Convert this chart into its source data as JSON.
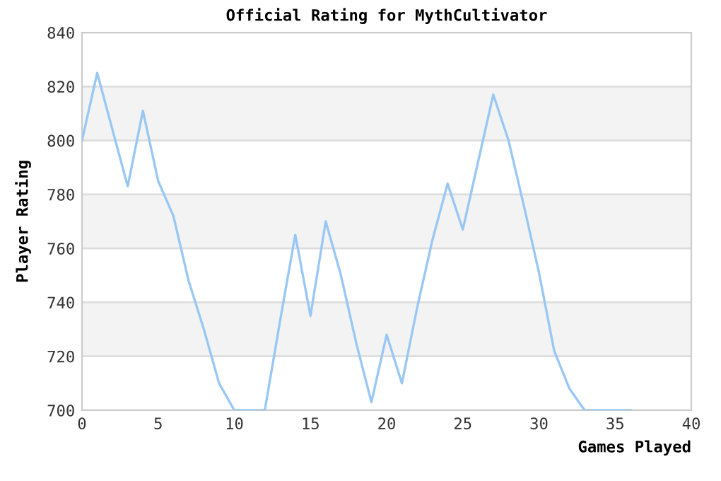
{
  "chart_data": {
    "type": "line",
    "title": "Official Rating for MythCultivator",
    "xlabel": "Games Played",
    "ylabel": "Player Rating",
    "x": [
      0,
      1,
      2,
      3,
      4,
      5,
      6,
      7,
      8,
      9,
      10,
      11,
      12,
      13,
      14,
      15,
      16,
      17,
      18,
      19,
      20,
      21,
      22,
      23,
      24,
      25,
      26,
      27,
      28,
      29,
      30,
      31,
      32,
      33,
      34,
      35,
      36
    ],
    "series": [
      {
        "color": "#99c7f5",
        "values": [
          800,
          825,
          804,
          783,
          811,
          785,
          772,
          748,
          730,
          710,
          700,
          700,
          700,
          733,
          765,
          735,
          770,
          750,
          725,
          703,
          728,
          710,
          738,
          763,
          784,
          767,
          792,
          817,
          800,
          776,
          751,
          722,
          708,
          700,
          700,
          700,
          700
        ]
      }
    ],
    "xlim": [
      0,
      40
    ],
    "xticks": [
      0,
      5,
      10,
      15,
      20,
      25,
      30,
      35,
      40
    ],
    "ylim": [
      700,
      840
    ],
    "yticks": [
      700,
      720,
      740,
      760,
      780,
      800,
      820,
      840
    ],
    "grid": "y",
    "marker": "none",
    "line_style": "solid"
  }
}
